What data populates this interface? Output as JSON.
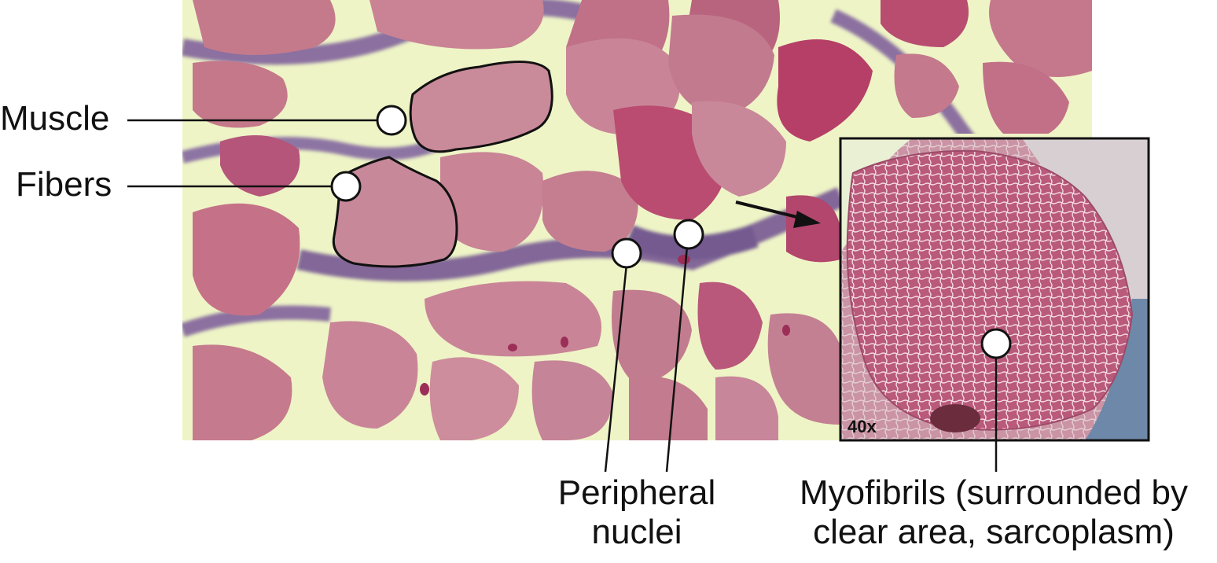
{
  "labels": {
    "muscle": "Muscle",
    "fibers": "Fibers",
    "peripheral_line1": "Peripheral",
    "peripheral_line2": "nuclei",
    "myofibrils_line1": "Myofibrils (surrounded by",
    "myofibrils_line2": "clear area, sarcoplasm)"
  },
  "inset": {
    "magnification": "40x"
  },
  "colors": {
    "fiber": "#c26f86",
    "fiber_dark": "#b44a6e",
    "connective_tissue": "#eef4c6",
    "stroma": "#7a5a9a",
    "inset_background": "#c99fae",
    "inset_mesh": "#f3d8e0",
    "marker": "#ffffff",
    "line": "#111111"
  }
}
